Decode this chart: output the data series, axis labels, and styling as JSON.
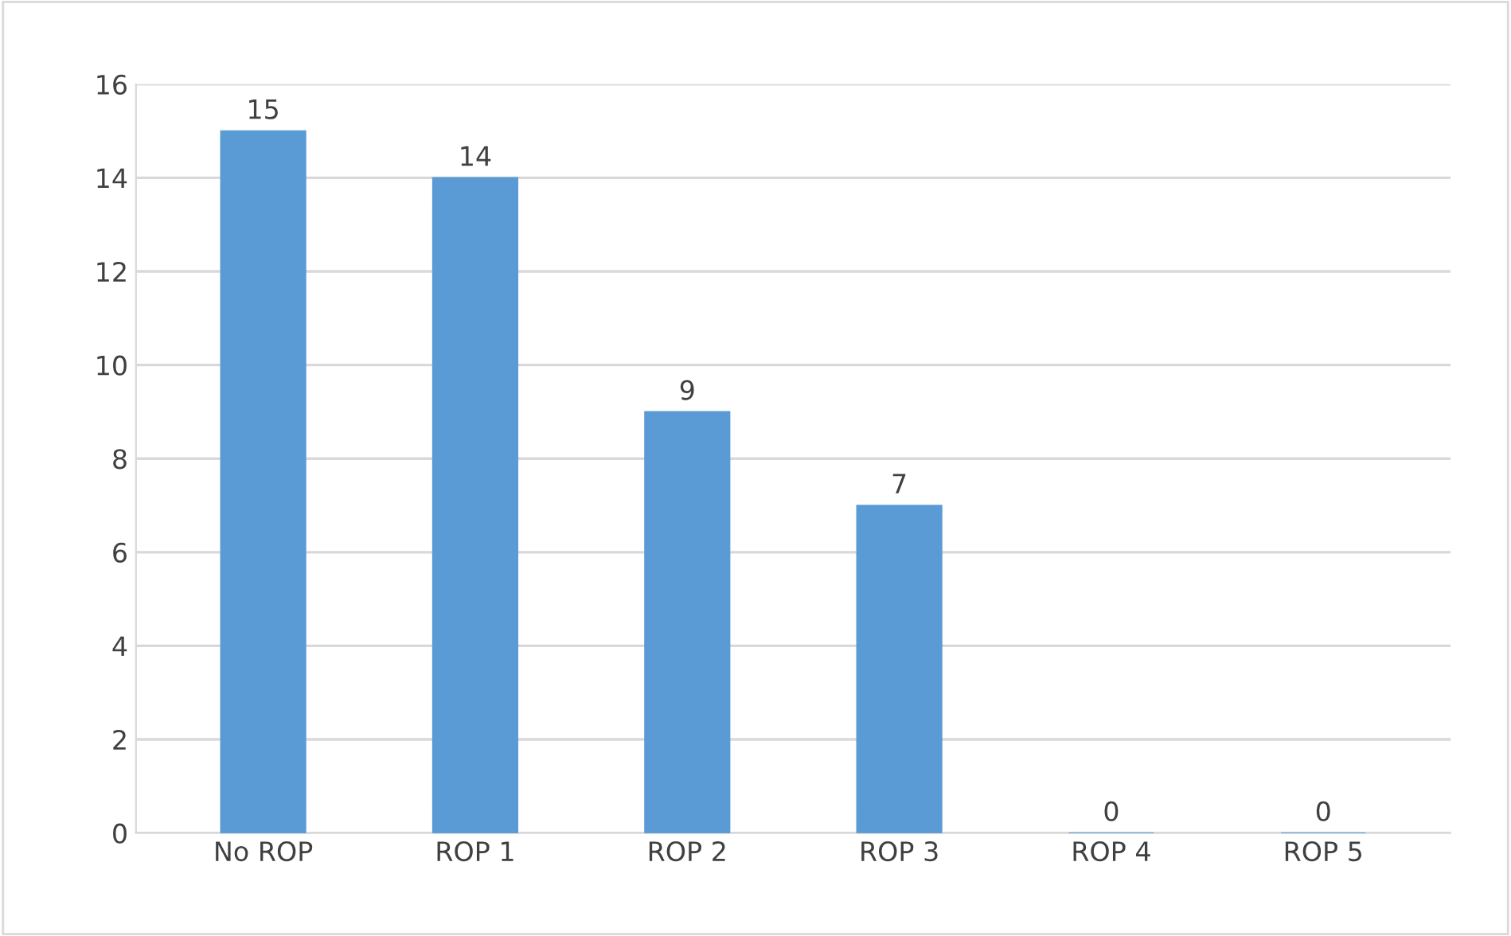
{
  "chart_data": {
    "type": "bar",
    "categories": [
      "No ROP",
      "ROP 1",
      "ROP 2",
      "ROP 3",
      "ROP 4",
      "ROP 5"
    ],
    "values": [
      15,
      14,
      9,
      7,
      0,
      0
    ],
    "color": "#5b9bd5",
    "ylim": [
      0,
      16
    ],
    "yticks": [
      0,
      2,
      4,
      6,
      8,
      10,
      12,
      14,
      16
    ],
    "grid": "y",
    "data_labels": true
  }
}
